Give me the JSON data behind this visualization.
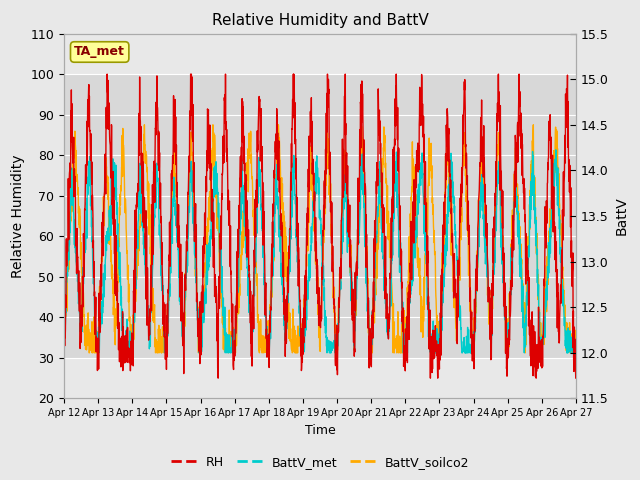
{
  "title": "Relative Humidity and BattV",
  "ylabel_left": "Relative Humidity",
  "ylabel_right": "BattV",
  "xlabel": "Time",
  "ylim_left": [
    20,
    110
  ],
  "ylim_right": [
    11.5,
    15.5
  ],
  "yticks_left": [
    20,
    30,
    40,
    50,
    60,
    70,
    80,
    90,
    100,
    110
  ],
  "yticks_right": [
    11.5,
    12.0,
    12.5,
    13.0,
    13.5,
    14.0,
    14.5,
    15.0,
    15.5
  ],
  "xtick_labels": [
    "Apr 12",
    "Apr 13",
    "Apr 14",
    "Apr 15",
    "Apr 16",
    "Apr 17",
    "Apr 18",
    "Apr 19",
    "Apr 20",
    "Apr 21",
    "Apr 22",
    "Apr 23",
    "Apr 24",
    "Apr 25",
    "Apr 26",
    "Apr 27"
  ],
  "color_RH": "#dd0000",
  "color_BattV_met": "#00cccc",
  "color_BattV_soilco2": "#ffaa00",
  "annotation_text": "TA_met",
  "annotation_facecolor": "#ffff99",
  "annotation_edgecolor": "#999900",
  "annotation_textcolor": "#880000",
  "bg_color": "#e8e8e8",
  "band_facecolor": "#d8d8d8",
  "n_days": 15,
  "n_points_per_day": 144,
  "rh_min_day": 30,
  "rh_max_day": 98,
  "batt_soil_min": 12.0,
  "batt_soil_max": 14.5,
  "batt_met_min": 12.0,
  "batt_met_max": 14.2
}
